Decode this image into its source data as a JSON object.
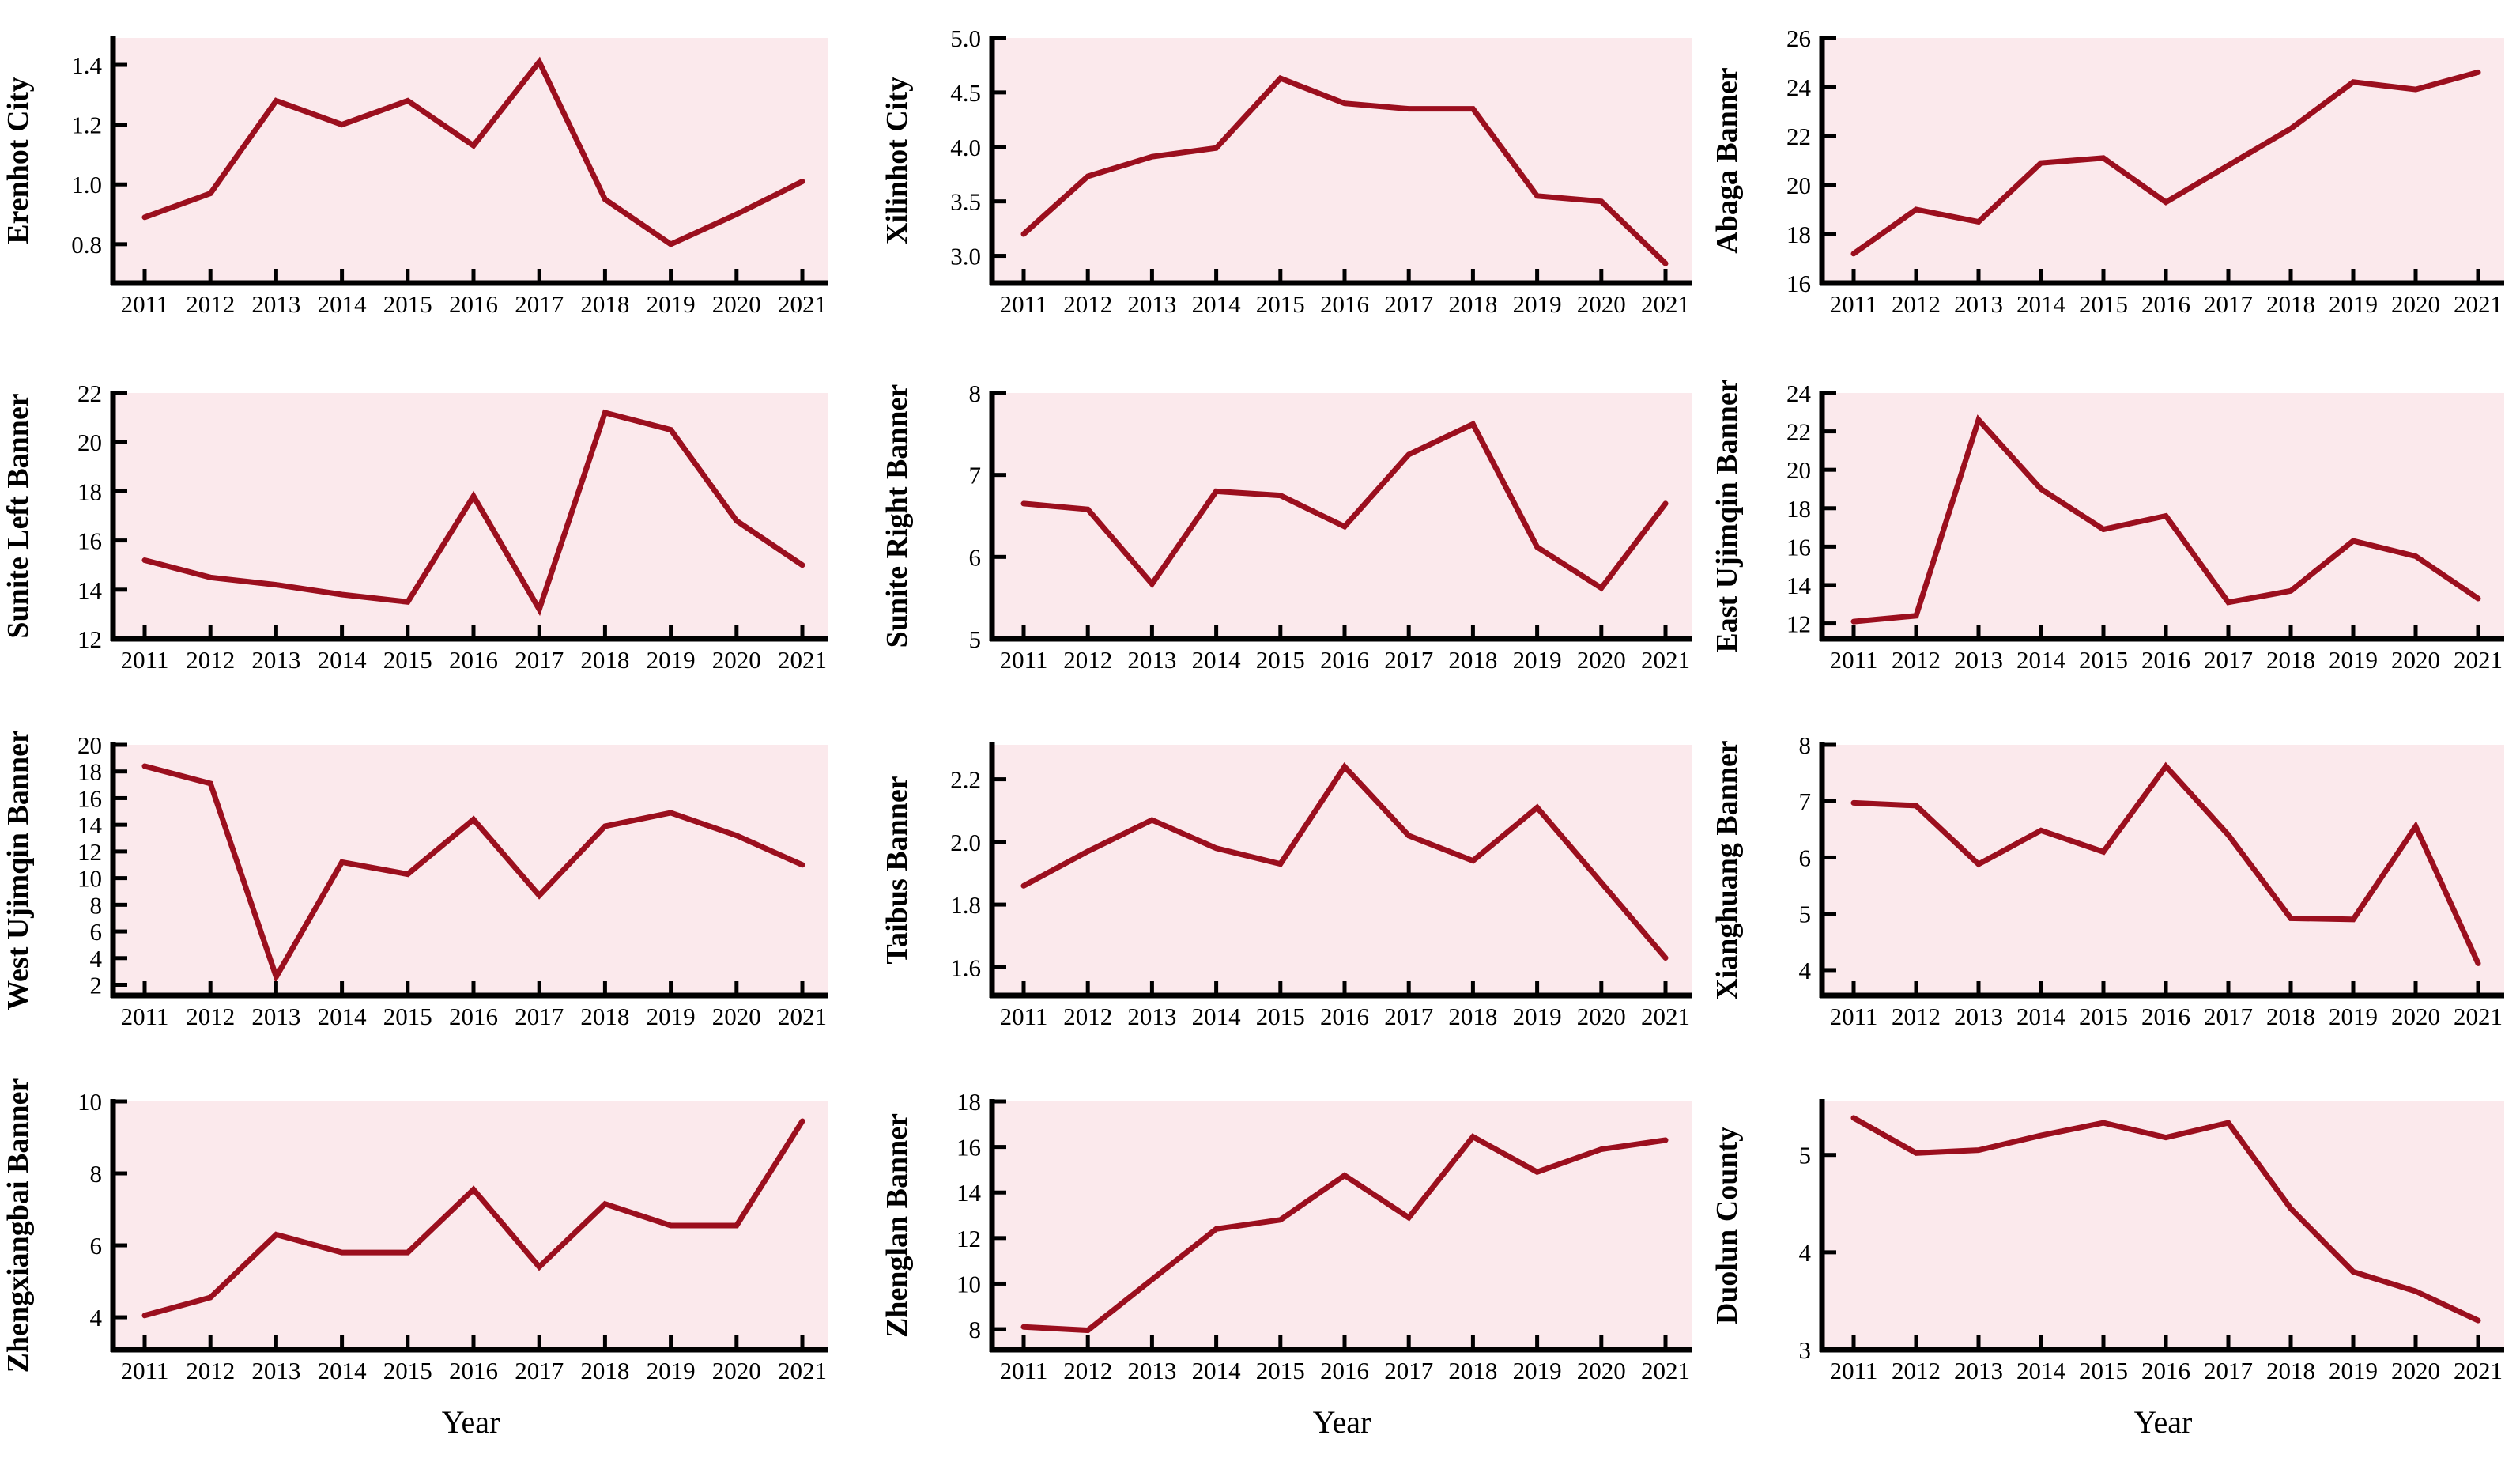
{
  "figure": {
    "plot_bg_color": "#FBE9EC",
    "line_color": "#9B0F1E",
    "axis_color": "#000000",
    "x_axis_title": "Year"
  },
  "chart_data": [
    {
      "type": "line",
      "title": "Erenhot City",
      "ylabel": "Erenhot City",
      "xlabel": "",
      "x": [
        2011,
        2012,
        2013,
        2014,
        2015,
        2016,
        2017,
        2018,
        2019,
        2020,
        2021
      ],
      "values": [
        0.89,
        0.97,
        1.28,
        1.2,
        1.28,
        1.13,
        1.41,
        0.95,
        0.8,
        0.9,
        1.01
      ],
      "ylim": [
        0.67,
        1.49
      ],
      "yticks": [
        0.8,
        1.0,
        1.2,
        1.4
      ],
      "ytick_labels": [
        "0.8",
        "1.0",
        "1.2",
        "1.4"
      ],
      "grid": false,
      "legend": null
    },
    {
      "type": "line",
      "title": "Xilinhot City",
      "ylabel": "Xilinhot City",
      "xlabel": "",
      "x": [
        2011,
        2012,
        2013,
        2014,
        2015,
        2016,
        2017,
        2018,
        2019,
        2020,
        2021
      ],
      "values": [
        3.2,
        3.73,
        3.91,
        3.99,
        4.63,
        4.4,
        4.35,
        4.35,
        3.55,
        3.5,
        2.93
      ],
      "ylim": [
        2.75,
        5.0
      ],
      "yticks": [
        3.0,
        3.5,
        4.0,
        4.5,
        5.0
      ],
      "ytick_labels": [
        "3.0",
        "3.5",
        "4.0",
        "4.5",
        "5.0"
      ],
      "grid": false,
      "legend": null
    },
    {
      "type": "line",
      "title": "Abaga Banner",
      "ylabel": "Abaga Banner",
      "xlabel": "",
      "x": [
        2011,
        2012,
        2013,
        2014,
        2015,
        2016,
        2017,
        2018,
        2019,
        2020,
        2021
      ],
      "values": [
        17.2,
        19.0,
        18.5,
        20.9,
        21.1,
        19.3,
        20.8,
        22.3,
        24.2,
        23.9,
        24.6
      ],
      "ylim": [
        16,
        26
      ],
      "yticks": [
        16,
        18,
        20,
        22,
        24,
        26
      ],
      "ytick_labels": [
        "16",
        "18",
        "20",
        "22",
        "24",
        "26"
      ],
      "grid": false,
      "legend": null
    },
    {
      "type": "line",
      "title": "Sunite Left Banner",
      "ylabel": "Sunite Left Banner",
      "xlabel": "",
      "x": [
        2011,
        2012,
        2013,
        2014,
        2015,
        2016,
        2017,
        2018,
        2019,
        2020,
        2021
      ],
      "values": [
        15.2,
        14.5,
        14.2,
        13.8,
        13.5,
        17.8,
        13.2,
        21.2,
        20.5,
        16.8,
        15.0
      ],
      "ylim": [
        12,
        22
      ],
      "yticks": [
        12,
        14,
        16,
        18,
        20,
        22
      ],
      "ytick_labels": [
        "12",
        "14",
        "16",
        "18",
        "20",
        "22"
      ],
      "grid": false,
      "legend": null
    },
    {
      "type": "line",
      "title": "Sunite Right Banner",
      "ylabel": "Sunite Right Banner",
      "xlabel": "",
      "x": [
        2011,
        2012,
        2013,
        2014,
        2015,
        2016,
        2017,
        2018,
        2019,
        2020,
        2021
      ],
      "values": [
        6.65,
        6.58,
        5.67,
        6.8,
        6.75,
        6.37,
        7.25,
        7.62,
        6.12,
        5.62,
        6.65
      ],
      "ylim": [
        5,
        8
      ],
      "yticks": [
        5,
        6,
        7,
        8
      ],
      "ytick_labels": [
        "5",
        "6",
        "7",
        "8"
      ],
      "grid": false,
      "legend": null
    },
    {
      "type": "line",
      "title": "East Ujimqin Banner",
      "ylabel": "East Ujimqin Banner",
      "xlabel": "",
      "x": [
        2011,
        2012,
        2013,
        2014,
        2015,
        2016,
        2017,
        2018,
        2019,
        2020,
        2021
      ],
      "values": [
        12.1,
        12.4,
        22.6,
        19.0,
        16.9,
        17.6,
        13.1,
        13.7,
        16.3,
        15.5,
        13.3
      ],
      "ylim": [
        11.2,
        24
      ],
      "yticks": [
        12,
        14,
        16,
        18,
        20,
        22,
        24
      ],
      "ytick_labels": [
        "12",
        "14",
        "16",
        "18",
        "20",
        "22",
        "24"
      ],
      "grid": false,
      "legend": null
    },
    {
      "type": "line",
      "title": "West Ujimqin Banner",
      "ylabel": "West Ujimqin Banner",
      "xlabel": "",
      "x": [
        2011,
        2012,
        2013,
        2014,
        2015,
        2016,
        2017,
        2018,
        2019,
        2020,
        2021
      ],
      "values": [
        18.4,
        17.1,
        2.6,
        11.2,
        10.3,
        14.4,
        8.7,
        13.9,
        14.9,
        13.2,
        11.0
      ],
      "ylim": [
        1.2,
        20
      ],
      "yticks": [
        2,
        4,
        6,
        8,
        10,
        12,
        14,
        16,
        18,
        20
      ],
      "ytick_labels": [
        "2",
        "4",
        "6",
        "8",
        "10",
        "12",
        "14",
        "16",
        "18",
        "20"
      ],
      "grid": false,
      "legend": null
    },
    {
      "type": "line",
      "title": "Taibus Banner",
      "ylabel": "Taibus Banner",
      "xlabel": "",
      "x": [
        2011,
        2012,
        2013,
        2014,
        2015,
        2016,
        2017,
        2018,
        2019,
        2020,
        2021
      ],
      "values": [
        1.86,
        1.97,
        2.07,
        1.98,
        1.93,
        2.24,
        2.02,
        1.94,
        2.11,
        1.87,
        1.63
      ],
      "ylim": [
        1.51,
        2.31
      ],
      "yticks": [
        1.6,
        1.8,
        2.0,
        2.2
      ],
      "ytick_labels": [
        "1.6",
        "1.8",
        "2.0",
        "2.2"
      ],
      "grid": false,
      "legend": null
    },
    {
      "type": "line",
      "title": "Xianghuang Banner",
      "ylabel": "Xianghuang Banner",
      "xlabel": "",
      "x": [
        2011,
        2012,
        2013,
        2014,
        2015,
        2016,
        2017,
        2018,
        2019,
        2020,
        2021
      ],
      "values": [
        6.97,
        6.92,
        5.88,
        6.48,
        6.1,
        7.62,
        6.4,
        4.92,
        4.9,
        6.55,
        4.12
      ],
      "ylim": [
        3.55,
        8
      ],
      "yticks": [
        4,
        5,
        6,
        7,
        8
      ],
      "ytick_labels": [
        "4",
        "5",
        "6",
        "7",
        "8"
      ],
      "grid": false,
      "legend": null
    },
    {
      "type": "line",
      "title": "Zhengxiangbai Banner",
      "ylabel": "Zhengxiangbai Banner",
      "xlabel": "Year",
      "x": [
        2011,
        2012,
        2013,
        2014,
        2015,
        2016,
        2017,
        2018,
        2019,
        2020,
        2021
      ],
      "values": [
        4.05,
        4.55,
        6.3,
        5.8,
        5.8,
        7.55,
        5.4,
        7.15,
        6.55,
        6.55,
        9.45
      ],
      "ylim": [
        3.1,
        10
      ],
      "yticks": [
        4,
        6,
        8,
        10
      ],
      "ytick_labels": [
        "4",
        "6",
        "8",
        "10"
      ],
      "grid": false,
      "legend": null
    },
    {
      "type": "line",
      "title": "Zhenglan Banner",
      "ylabel": "Zhenglan Banner",
      "xlabel": "Year",
      "x": [
        2011,
        2012,
        2013,
        2014,
        2015,
        2016,
        2017,
        2018,
        2019,
        2020,
        2021
      ],
      "values": [
        8.1,
        7.95,
        10.18,
        12.4,
        12.8,
        14.75,
        12.9,
        16.45,
        14.9,
        15.9,
        16.3
      ],
      "ylim": [
        7.1,
        18
      ],
      "yticks": [
        8,
        10,
        12,
        14,
        16,
        18
      ],
      "ytick_labels": [
        "8",
        "10",
        "12",
        "14",
        "16",
        "18"
      ],
      "grid": false,
      "legend": null
    },
    {
      "type": "line",
      "title": "Duolun County",
      "ylabel": "Duolun County",
      "xlabel": "Year",
      "x": [
        2011,
        2012,
        2013,
        2014,
        2015,
        2016,
        2017,
        2018,
        2019,
        2020,
        2021
      ],
      "values": [
        5.38,
        5.02,
        5.05,
        5.2,
        5.33,
        5.18,
        5.33,
        4.45,
        3.8,
        3.6,
        3.3
      ],
      "ylim": [
        3,
        5.55
      ],
      "yticks": [
        3,
        4,
        5
      ],
      "ytick_labels": [
        "3",
        "4",
        "5"
      ],
      "grid": false,
      "legend": null
    }
  ]
}
